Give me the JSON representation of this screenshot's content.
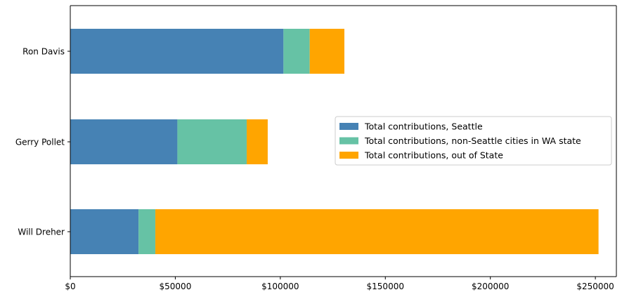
{
  "chart_data": {
    "type": "bar",
    "orientation": "horizontal",
    "stacked": true,
    "categories": [
      "Will Dreher",
      "Gerry Pollet",
      "Ron Davis"
    ],
    "series": [
      {
        "name": "Total contributions, Seattle",
        "color": "#4682b4",
        "values": [
          32500,
          51000,
          101500
        ]
      },
      {
        "name": "Total contributions, non-Seattle cities in WA state",
        "color": "#66c2a5",
        "values": [
          8000,
          33000,
          12500
        ]
      },
      {
        "name": "Total contributions, out of State",
        "color": "#ffa500",
        "values": [
          211000,
          10000,
          16500
        ]
      }
    ],
    "xlim": [
      0,
      260000
    ],
    "xticks": [
      0,
      50000,
      100000,
      150000,
      200000,
      250000
    ],
    "xtick_labels": [
      "$0",
      "$50000",
      "$100000",
      "$150000",
      "$200000",
      "$250000"
    ],
    "grid": false,
    "legend_position": "center-right"
  }
}
